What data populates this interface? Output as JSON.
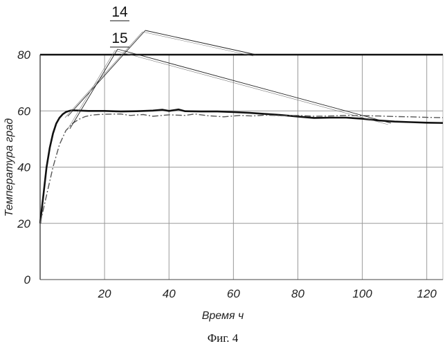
{
  "chart_data": {
    "type": "line",
    "xlabel": "Время ч",
    "ylabel": "Температура град",
    "xlim": [
      0,
      125
    ],
    "ylim": [
      0,
      80
    ],
    "x_ticks": [
      "20",
      "40",
      "60",
      "80",
      "100",
      "120"
    ],
    "y_ticks": [
      "0",
      "20",
      "40",
      "60",
      "80"
    ],
    "grid": true,
    "series": [
      {
        "name": "14",
        "style": "solid",
        "color": "#111111",
        "points": [
          [
            0,
            20
          ],
          [
            1,
            30
          ],
          [
            2,
            40
          ],
          [
            3,
            47
          ],
          [
            4,
            52
          ],
          [
            5,
            55.5
          ],
          [
            6,
            57.5
          ],
          [
            7,
            58.8
          ],
          [
            8,
            59.6
          ],
          [
            9,
            60
          ],
          [
            10,
            60.2
          ],
          [
            15,
            60
          ],
          [
            20,
            60
          ],
          [
            25,
            59.8
          ],
          [
            30,
            59.9
          ],
          [
            35,
            60.1
          ],
          [
            38,
            60.4
          ],
          [
            40,
            60
          ],
          [
            43,
            60.5
          ],
          [
            45,
            59.9
          ],
          [
            50,
            59.8
          ],
          [
            55,
            59.8
          ],
          [
            60,
            59.6
          ],
          [
            65,
            59.3
          ],
          [
            70,
            58.9
          ],
          [
            75,
            58.5
          ],
          [
            80,
            58
          ],
          [
            85,
            57.5
          ],
          [
            90,
            57.6
          ],
          [
            95,
            57.6
          ],
          [
            100,
            57.2
          ],
          [
            105,
            56.6
          ],
          [
            110,
            56.2
          ],
          [
            115,
            56
          ],
          [
            120,
            55.8
          ],
          [
            125,
            55.7
          ]
        ]
      },
      {
        "name": "15",
        "style": "dashed",
        "color": "#555555",
        "points": [
          [
            0,
            20
          ],
          [
            2,
            30
          ],
          [
            4,
            40
          ],
          [
            6,
            48
          ],
          [
            8,
            53
          ],
          [
            10,
            55.5
          ],
          [
            12,
            57
          ],
          [
            14,
            58
          ],
          [
            16,
            58.5
          ],
          [
            18,
            58.7
          ],
          [
            20,
            58.8
          ],
          [
            25,
            58.9
          ],
          [
            28,
            58.4
          ],
          [
            32,
            58.7
          ],
          [
            35,
            58.1
          ],
          [
            40,
            58.6
          ],
          [
            45,
            58.4
          ],
          [
            48,
            58.9
          ],
          [
            52,
            58.3
          ],
          [
            57,
            57.9
          ],
          [
            62,
            58.4
          ],
          [
            66,
            58.2
          ],
          [
            70,
            58.5
          ],
          [
            75,
            58.3
          ],
          [
            80,
            58.4
          ],
          [
            85,
            58.1
          ],
          [
            90,
            58.2
          ],
          [
            95,
            58.4
          ],
          [
            100,
            58.3
          ],
          [
            105,
            58.2
          ],
          [
            110,
            58
          ],
          [
            115,
            57.9
          ],
          [
            120,
            57.7
          ],
          [
            125,
            57.6
          ]
        ]
      }
    ],
    "annotations": [
      {
        "text": "14",
        "line_style": "double"
      },
      {
        "text": "15",
        "line_style": "double"
      }
    ]
  },
  "caption": "Фиг. 4"
}
